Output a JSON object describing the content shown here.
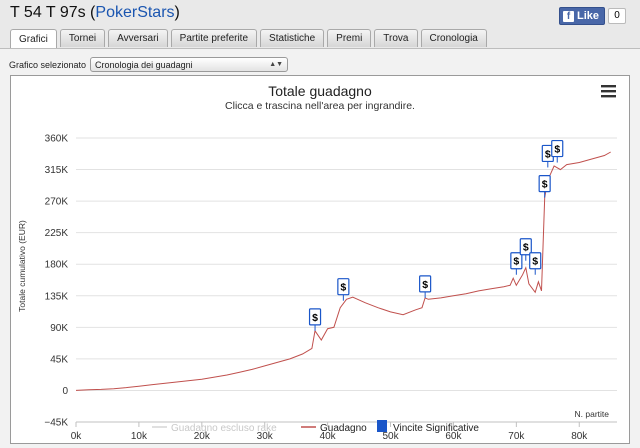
{
  "header": {
    "title_prefix": "T 54 T 97s (",
    "site": "PokerStars",
    "title_suffix": ")",
    "fb_label": "Like",
    "fb_count": "0"
  },
  "tabs": [
    {
      "label": "Grafici",
      "active": true
    },
    {
      "label": "Tornei"
    },
    {
      "label": "Avversari"
    },
    {
      "label": "Partite preferite"
    },
    {
      "label": "Statistiche"
    },
    {
      "label": "Premi"
    },
    {
      "label": "Trova"
    },
    {
      "label": "Cronologia"
    }
  ],
  "selector": {
    "label": "Grafico selezionato",
    "value": "Cronologia dei guadagni"
  },
  "chart_data": {
    "type": "line",
    "title": "Totale guadagno",
    "subtitle": "Clicca e trascina nell'area per ingrandire.",
    "ylabel": "Totale cumulativo (EUR)",
    "xlabel": "N. partite",
    "xlim": [
      0,
      86000
    ],
    "ylim": [
      -45000,
      360000
    ],
    "x_ticks": [
      "0k",
      "10k",
      "20k",
      "30k",
      "40k",
      "50k",
      "60k",
      "70k",
      "80k"
    ],
    "y_ticks": [
      "−45K",
      "0",
      "45K",
      "90K",
      "135K",
      "180K",
      "225K",
      "270K",
      "315K",
      "360K"
    ],
    "legend": [
      "Guadagno escluso rake",
      "Guadagno",
      "Vincite Significative"
    ],
    "legend_position": "bottom",
    "colors": {
      "line": "#c0504d",
      "marker": "#1a56c9"
    },
    "series": [
      {
        "name": "Guadagno",
        "points": [
          [
            0,
            0
          ],
          [
            2000,
            1000
          ],
          [
            4000,
            1500
          ],
          [
            6000,
            2500
          ],
          [
            8000,
            4000
          ],
          [
            10000,
            6000
          ],
          [
            12000,
            8000
          ],
          [
            14000,
            10000
          ],
          [
            16000,
            12000
          ],
          [
            18000,
            14000
          ],
          [
            20000,
            16000
          ],
          [
            22000,
            19000
          ],
          [
            24000,
            22000
          ],
          [
            26000,
            26000
          ],
          [
            28000,
            30000
          ],
          [
            30000,
            35000
          ],
          [
            32000,
            40000
          ],
          [
            34000,
            45000
          ],
          [
            36000,
            52000
          ],
          [
            37500,
            60000
          ],
          [
            38000,
            85000
          ],
          [
            39000,
            72000
          ],
          [
            40000,
            88000
          ],
          [
            41000,
            90000
          ],
          [
            42000,
            118000
          ],
          [
            43000,
            130000
          ],
          [
            44000,
            133000
          ],
          [
            46000,
            125000
          ],
          [
            48000,
            118000
          ],
          [
            50000,
            112000
          ],
          [
            52000,
            108000
          ],
          [
            54000,
            115000
          ],
          [
            55000,
            118000
          ],
          [
            55500,
            132000
          ],
          [
            56000,
            130000
          ],
          [
            58000,
            132000
          ],
          [
            60000,
            135000
          ],
          [
            62000,
            138000
          ],
          [
            64000,
            142000
          ],
          [
            66000,
            145000
          ],
          [
            68000,
            148000
          ],
          [
            69000,
            150000
          ],
          [
            69500,
            160000
          ],
          [
            70000,
            150000
          ],
          [
            71000,
            165000
          ],
          [
            71500,
            175000
          ],
          [
            72000,
            152000
          ],
          [
            73000,
            140000
          ],
          [
            73500,
            155000
          ],
          [
            74000,
            142000
          ],
          [
            74500,
            275000
          ],
          [
            75000,
            300000
          ],
          [
            76000,
            320000
          ],
          [
            77000,
            315000
          ],
          [
            78000,
            322000
          ],
          [
            80000,
            325000
          ],
          [
            82000,
            330000
          ],
          [
            84000,
            335000
          ],
          [
            85000,
            340000
          ]
        ]
      }
    ],
    "significant_wins": [
      {
        "x": 38000,
        "y": 85000
      },
      {
        "x": 42500,
        "y": 128000
      },
      {
        "x": 55500,
        "y": 132000
      },
      {
        "x": 70000,
        "y": 165000
      },
      {
        "x": 71500,
        "y": 185000
      },
      {
        "x": 73000,
        "y": 165000
      },
      {
        "x": 74500,
        "y": 275000
      },
      {
        "x": 75000,
        "y": 318000
      },
      {
        "x": 76500,
        "y": 325000
      }
    ]
  },
  "menu_icon": "hamburger-icon",
  "marker_label": "$"
}
